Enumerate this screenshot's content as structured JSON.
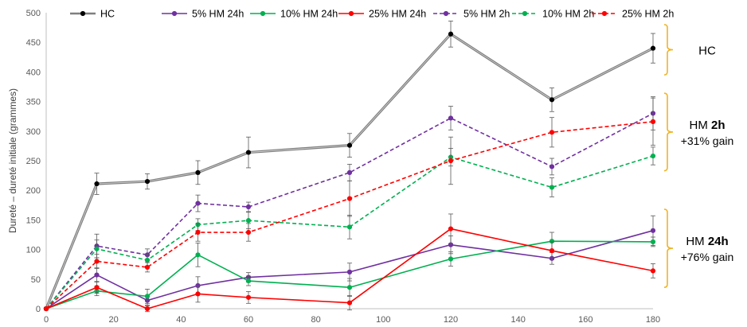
{
  "chart_data": {
    "type": "line",
    "title": "",
    "xlabel": "",
    "ylabel": "Dureté – dureté initiale (grammes)",
    "xlim": [
      0,
      180
    ],
    "ylim": [
      0,
      500
    ],
    "x_ticks": [
      0,
      20,
      40,
      60,
      80,
      100,
      120,
      140,
      160,
      180
    ],
    "y_ticks": [
      0,
      50,
      100,
      150,
      200,
      250,
      300,
      350,
      400,
      450,
      500
    ],
    "x_tick_labels": [
      "0",
      "20",
      "40",
      "60",
      "80",
      "100",
      "120",
      "140",
      "160",
      "180"
    ],
    "y_tick_labels": [
      "0",
      "50",
      "100",
      "150",
      "200",
      "250",
      "300",
      "350",
      "400",
      "450",
      "500"
    ],
    "grid": false,
    "legend_position": "top",
    "series": [
      {
        "name": "HC",
        "color": "#000000",
        "line_color": "#7f7f7f",
        "dashed": false,
        "bold": true,
        "x": [
          0,
          15,
          30,
          45,
          60,
          90,
          120,
          150,
          180
        ],
        "values": [
          0,
          211,
          215,
          230,
          264,
          276,
          464,
          353,
          440
        ],
        "errors": [
          2,
          18,
          13,
          20,
          26,
          20,
          22,
          20,
          25
        ]
      },
      {
        "name": "5% HM 24h",
        "color": "#7030a0",
        "dashed": false,
        "x": [
          0,
          15,
          30,
          45,
          60,
          90,
          120,
          150,
          180
        ],
        "values": [
          0,
          57,
          14,
          39,
          53,
          62,
          108,
          85,
          132
        ],
        "errors": [
          2,
          12,
          8,
          15,
          8,
          15,
          15,
          10,
          25
        ]
      },
      {
        "name": "10% HM 24h",
        "color": "#00b050",
        "dashed": false,
        "x": [
          0,
          15,
          30,
          45,
          60,
          90,
          120,
          150,
          180
        ],
        "values": [
          0,
          30,
          21,
          91,
          47,
          36,
          84,
          114,
          113
        ],
        "errors": [
          2,
          8,
          12,
          20,
          8,
          15,
          12,
          15,
          8
        ]
      },
      {
        "name": "25% HM 24h",
        "color": "#ff0000",
        "dashed": false,
        "x": [
          0,
          15,
          30,
          45,
          60,
          90,
          120,
          150,
          180
        ],
        "values": [
          0,
          36,
          0,
          25,
          19,
          10,
          135,
          98,
          64
        ],
        "errors": [
          2,
          10,
          5,
          14,
          10,
          12,
          25,
          15,
          12
        ]
      },
      {
        "name": "5% HM 2h",
        "color": "#7030a0",
        "dashed": true,
        "x": [
          0,
          15,
          30,
          45,
          60,
          90,
          120,
          150,
          180
        ],
        "values": [
          0,
          106,
          91,
          178,
          172,
          230,
          322,
          240,
          330
        ],
        "errors": [
          2,
          20,
          10,
          14,
          8,
          14,
          20,
          14,
          28
        ]
      },
      {
        "name": "10% HM 2h",
        "color": "#00b050",
        "dashed": true,
        "x": [
          0,
          15,
          30,
          45,
          60,
          90,
          120,
          150,
          180
        ],
        "values": [
          0,
          101,
          82,
          142,
          149,
          138,
          256,
          205,
          258
        ],
        "errors": [
          2,
          15,
          10,
          10,
          14,
          20,
          15,
          16,
          15
        ]
      },
      {
        "name": "25% HM 2h",
        "color": "#ff0000",
        "dashed": true,
        "x": [
          0,
          15,
          30,
          45,
          60,
          90,
          120,
          150,
          180
        ],
        "values": [
          0,
          80,
          70,
          129,
          129,
          186,
          250,
          298,
          316
        ],
        "errors": [
          2,
          12,
          8,
          15,
          15,
          30,
          40,
          25,
          40
        ]
      }
    ],
    "annotations": [
      {
        "id": "hc",
        "label": "HC",
        "bold_part": "",
        "second_line": "",
        "y_range": [
          395,
          480
        ]
      },
      {
        "id": "hm2h",
        "label": "HM ",
        "bold_part": "2h",
        "second_line": "+31% gain",
        "y_range": [
          233,
          364
        ]
      },
      {
        "id": "hm24h",
        "label": "HM ",
        "bold_part": "24h",
        "second_line": "+76% gain",
        "y_range": [
          36,
          168
        ]
      }
    ],
    "brace_color": "#f0b429"
  }
}
